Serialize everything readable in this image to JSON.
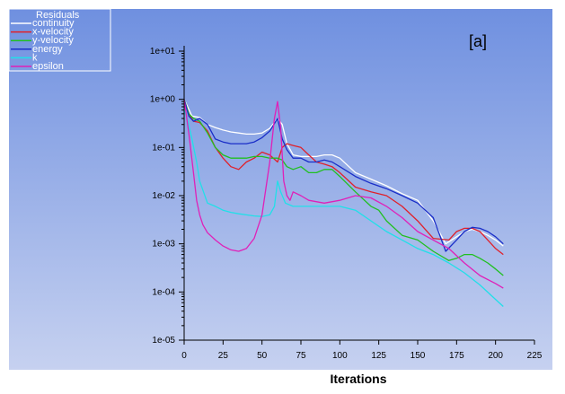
{
  "panel_label": "[a]",
  "colors": {
    "background_top": "#6f90e0",
    "background_bottom": "#c6d1f0",
    "continuity": "#ffffff",
    "x-velocity": "#e0202a",
    "y-velocity": "#20c020",
    "energy": "#1a2ec8",
    "k": "#20e0e8",
    "epsilon": "#e020b8"
  },
  "chart_data": {
    "type": "line",
    "title": "",
    "xlabel": "Iterations",
    "ylabel": "",
    "xlim": [
      0,
      225
    ],
    "ylim": [
      1e-05,
      10
    ],
    "yscale": "log",
    "grid": false,
    "legend_title": "Residuals",
    "legend_position": "top-left",
    "x_ticks": [
      0,
      25,
      50,
      75,
      100,
      125,
      150,
      175,
      200,
      225
    ],
    "y_ticks": [
      10,
      1,
      0.1,
      0.01,
      0.001,
      0.0001,
      1e-05
    ],
    "x_tick_labels": [
      "0",
      "25",
      "50",
      "75",
      "100",
      "125",
      "150",
      "175",
      "200",
      "225"
    ],
    "y_tick_labels": [
      "1e+01",
      "1e+00",
      "1e-01",
      "1e-02",
      "1e-03",
      "1e-04",
      "1e-05"
    ],
    "series": [
      {
        "name": "continuity",
        "x": [
          0,
          5,
          10,
          15,
          20,
          25,
          30,
          35,
          40,
          45,
          50,
          55,
          60,
          63,
          66,
          70,
          75,
          80,
          85,
          90,
          95,
          100,
          110,
          120,
          130,
          140,
          150,
          160,
          168,
          175,
          180,
          185,
          190,
          195,
          200,
          205
        ],
        "y": [
          1.0,
          0.45,
          0.42,
          0.3,
          0.26,
          0.23,
          0.21,
          0.2,
          0.19,
          0.19,
          0.2,
          0.25,
          0.4,
          0.3,
          0.12,
          0.07,
          0.065,
          0.065,
          0.065,
          0.07,
          0.07,
          0.06,
          0.03,
          0.022,
          0.016,
          0.011,
          0.008,
          0.003,
          0.001,
          0.0014,
          0.0018,
          0.002,
          0.0018,
          0.0015,
          0.0012,
          0.0009
        ]
      },
      {
        "name": "x-velocity",
        "x": [
          0,
          3,
          6,
          10,
          15,
          20,
          25,
          30,
          35,
          40,
          45,
          50,
          55,
          60,
          63,
          66,
          70,
          75,
          80,
          85,
          90,
          95,
          100,
          110,
          120,
          130,
          140,
          150,
          160,
          170,
          175,
          180,
          185,
          190,
          195,
          200,
          205
        ],
        "y": [
          1.0,
          0.5,
          0.35,
          0.33,
          0.22,
          0.1,
          0.06,
          0.04,
          0.035,
          0.05,
          0.06,
          0.08,
          0.07,
          0.05,
          0.1,
          0.12,
          0.11,
          0.1,
          0.07,
          0.05,
          0.045,
          0.04,
          0.03,
          0.015,
          0.012,
          0.01,
          0.006,
          0.003,
          0.0013,
          0.0012,
          0.0018,
          0.0021,
          0.0021,
          0.0018,
          0.0012,
          0.0008,
          0.0006
        ]
      },
      {
        "name": "y-velocity",
        "x": [
          0,
          3,
          6,
          10,
          15,
          20,
          25,
          30,
          35,
          40,
          45,
          50,
          55,
          60,
          63,
          66,
          70,
          75,
          80,
          85,
          90,
          95,
          100,
          110,
          120,
          125,
          130,
          140,
          150,
          160,
          170,
          175,
          180,
          185,
          190,
          195,
          200,
          205
        ],
        "y": [
          1.0,
          0.5,
          0.4,
          0.35,
          0.2,
          0.1,
          0.07,
          0.06,
          0.06,
          0.06,
          0.065,
          0.065,
          0.06,
          0.06,
          0.055,
          0.04,
          0.035,
          0.04,
          0.03,
          0.03,
          0.035,
          0.035,
          0.025,
          0.012,
          0.006,
          0.005,
          0.003,
          0.0015,
          0.0012,
          0.0007,
          0.00045,
          0.0005,
          0.0006,
          0.0006,
          0.0005,
          0.0004,
          0.0003,
          0.00022
        ]
      },
      {
        "name": "energy",
        "x": [
          0,
          3,
          6,
          10,
          15,
          20,
          25,
          30,
          35,
          40,
          45,
          50,
          55,
          60,
          63,
          66,
          70,
          75,
          80,
          85,
          90,
          95,
          100,
          110,
          120,
          130,
          140,
          150,
          160,
          168,
          175,
          180,
          185,
          190,
          195,
          200,
          205
        ],
        "y": [
          1.0,
          0.45,
          0.35,
          0.4,
          0.3,
          0.15,
          0.13,
          0.12,
          0.12,
          0.12,
          0.13,
          0.16,
          0.22,
          0.4,
          0.15,
          0.09,
          0.06,
          0.06,
          0.05,
          0.05,
          0.055,
          0.05,
          0.04,
          0.025,
          0.018,
          0.014,
          0.01,
          0.007,
          0.0035,
          0.0007,
          0.0012,
          0.0018,
          0.0022,
          0.0021,
          0.0018,
          0.0014,
          0.001
        ]
      },
      {
        "name": "k",
        "x": [
          0,
          2,
          5,
          8,
          10,
          15,
          20,
          25,
          30,
          35,
          40,
          45,
          50,
          55,
          58,
          60,
          62,
          65,
          70,
          80,
          90,
          100,
          110,
          120,
          130,
          140,
          150,
          160,
          170,
          180,
          190,
          200,
          205
        ],
        "y": [
          0.6,
          0.4,
          0.15,
          0.05,
          0.02,
          0.007,
          0.006,
          0.005,
          0.0045,
          0.0042,
          0.004,
          0.0038,
          0.0037,
          0.004,
          0.006,
          0.02,
          0.012,
          0.007,
          0.006,
          0.006,
          0.006,
          0.006,
          0.005,
          0.003,
          0.0018,
          0.0012,
          0.0008,
          0.0006,
          0.0004,
          0.00025,
          0.00014,
          7e-05,
          5e-05
        ]
      },
      {
        "name": "epsilon",
        "x": [
          0,
          3,
          6,
          8,
          10,
          12,
          15,
          20,
          25,
          30,
          35,
          40,
          45,
          50,
          55,
          58,
          60,
          62,
          64,
          66,
          68,
          70,
          75,
          80,
          90,
          100,
          110,
          120,
          130,
          140,
          150,
          160,
          170,
          180,
          190,
          200,
          205
        ],
        "y": [
          1.0,
          0.2,
          0.03,
          0.008,
          0.004,
          0.0025,
          0.0017,
          0.0012,
          0.0009,
          0.00075,
          0.0007,
          0.0008,
          0.0013,
          0.004,
          0.05,
          0.4,
          0.9,
          0.25,
          0.02,
          0.01,
          0.008,
          0.012,
          0.01,
          0.008,
          0.007,
          0.008,
          0.01,
          0.009,
          0.006,
          0.0035,
          0.0018,
          0.0012,
          0.0008,
          0.0004,
          0.00022,
          0.00015,
          0.00012
        ]
      }
    ]
  }
}
